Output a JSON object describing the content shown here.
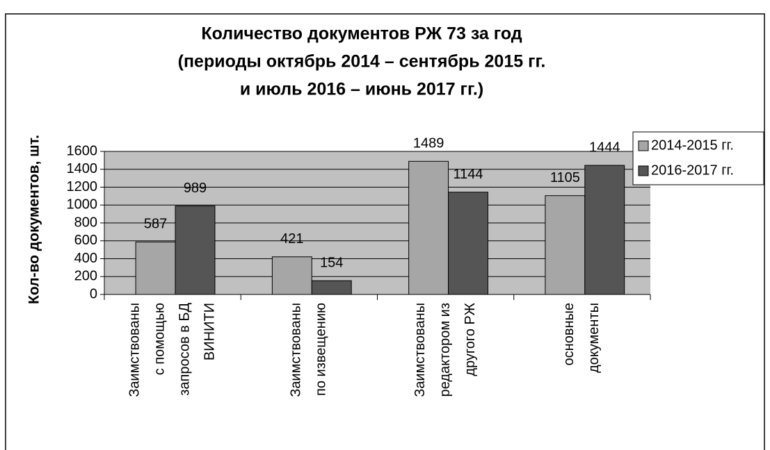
{
  "chart_data": {
    "type": "bar",
    "title": [
      "Количество документов РЖ 73 за год",
      "(периоды октябрь 2014 – сентябрь 2015 гг.",
      "и июль 2016 – июнь 2017 гг.)"
    ],
    "y_label": "Кол-во документов, шт.",
    "categories": [
      [
        "Заимствованы",
        "с помощью",
        "запросов в БД",
        "ВИНИТИ"
      ],
      [
        "Заимствованы",
        "по извещению"
      ],
      [
        "Заимствованы",
        "редактором из",
        "другого РЖ"
      ],
      [
        "основные",
        "документы"
      ]
    ],
    "series": [
      {
        "name": "2014-2015 гг.",
        "color": "#a6a6a6",
        "values": [
          587,
          421,
          1489,
          1105
        ]
      },
      {
        "name": "2016-2017 гг.",
        "color": "#555555",
        "values": [
          989,
          154,
          1144,
          1444
        ]
      }
    ],
    "ylim": [
      0,
      1600
    ],
    "yticks": [
      0,
      200,
      400,
      600,
      800,
      1000,
      1200,
      1400,
      1600
    ],
    "grid": true,
    "legend": "right"
  }
}
